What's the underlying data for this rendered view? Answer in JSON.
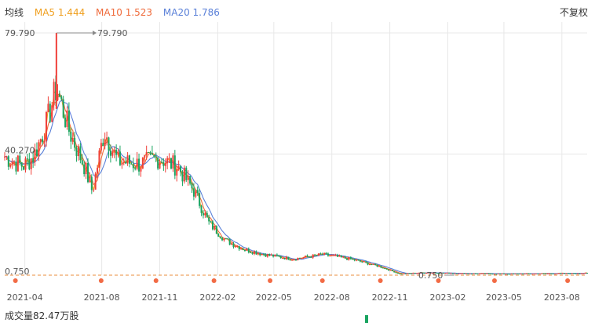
{
  "legend": {
    "title": "均线",
    "ma5": "MA5 1.444",
    "ma10": "MA10 1.523",
    "ma20": "MA20 1.786"
  },
  "restore_label": "不复权",
  "volume_label": "成交量82.47万股",
  "colors": {
    "up": "#f0403a",
    "down": "#1aa461",
    "ma5": "#f0a020",
    "ma10": "#ef6a3a",
    "ma20": "#5a80d8",
    "grid": "#e8e8e8",
    "baseline": "#e88c3c",
    "marker": "#f26b45"
  },
  "chart_data": {
    "type": "candlestick",
    "y_ticks": [
      "79.790",
      "40.270",
      "0.750"
    ],
    "ylim": [
      0.75,
      79.79
    ],
    "x_ticks": [
      "2021-04",
      "2021-08",
      "2021-11",
      "2022-02",
      "2022-05",
      "2022-08",
      "2022-11",
      "2023-02",
      "2023-05",
      "2023-08"
    ],
    "max_annotation": "79.790",
    "min_annotation": "0.750",
    "series": [
      {
        "name": "MA5",
        "last": 1.444
      },
      {
        "name": "MA10",
        "last": 1.523
      },
      {
        "name": "MA20",
        "last": 1.786
      }
    ],
    "close_trajectory": [
      [
        "2021-03-15",
        39.5
      ],
      [
        "2021-04-01",
        37.5
      ],
      [
        "2021-04-15",
        36.5
      ],
      [
        "2021-05-01",
        40.0
      ],
      [
        "2021-05-20",
        50.0
      ],
      [
        "2021-06-05",
        62.0
      ],
      [
        "2021-06-25",
        48.0
      ],
      [
        "2021-07-20",
        36.0
      ],
      [
        "2021-08-01",
        28.0
      ],
      [
        "2021-08-20",
        48.0
      ],
      [
        "2021-09-10",
        38.0
      ],
      [
        "2021-10-15",
        37.0
      ],
      [
        "2021-11-15",
        39.0
      ],
      [
        "2021-12-15",
        36.0
      ],
      [
        "2022-01-10",
        28.0
      ],
      [
        "2022-02-01",
        18.0
      ],
      [
        "2022-03-01",
        12.0
      ],
      [
        "2022-04-01",
        9.0
      ],
      [
        "2022-05-01",
        7.5
      ],
      [
        "2022-06-15",
        6.0
      ],
      [
        "2022-08-01",
        7.5
      ],
      [
        "2022-09-15",
        6.0
      ],
      [
        "2022-11-01",
        3.5
      ],
      [
        "2022-12-01",
        1.2
      ],
      [
        "2023-01-15",
        1.6
      ],
      [
        "2023-03-15",
        1.3
      ],
      [
        "2023-06-01",
        1.2
      ],
      [
        "2023-09-25",
        1.4
      ]
    ],
    "markers": [
      "2021-04-01",
      "2021-08-15",
      "2021-11-10",
      "2022-02-10",
      "2022-05-10",
      "2022-08-01",
      "2022-11-01",
      "2023-02-01",
      "2023-05-01",
      "2023-08-25"
    ]
  }
}
